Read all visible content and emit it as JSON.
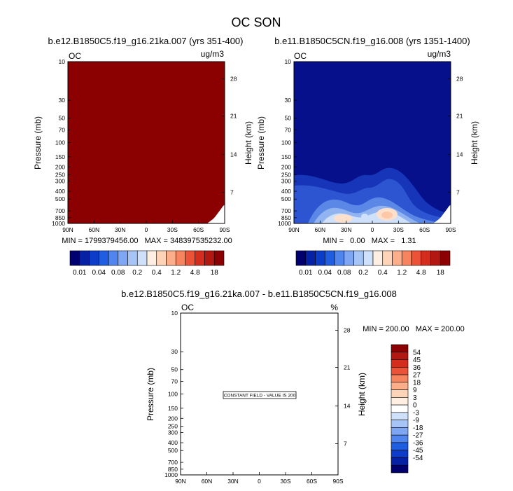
{
  "title": "OC SON",
  "colors": {
    "background": "#ffffff",
    "saturated": "#8b0000",
    "blue_field": "#05108a"
  },
  "palette": [
    "#02006e",
    "#0621a4",
    "#0c3cc8",
    "#1f5ee1",
    "#4f85ec",
    "#7ea6f2",
    "#a6c5f6",
    "#cfe0fb",
    "#ffefe2",
    "#fed4b9",
    "#fcae8a",
    "#f6845f",
    "#ec5237",
    "#d52d1d",
    "#b21711",
    "#8b0000"
  ],
  "chart_data": [
    {
      "type": "heatmap",
      "id": "panel1",
      "title": "b.e12.B1850C5.f19_g16.21ka.007 (yrs 351-400)",
      "corner_left": "OC",
      "corner_right": "ug/m3",
      "xlabel": "",
      "ylabel": "Pressure (mb)",
      "ylabel_right": "Height (km)",
      "x_ticks": [
        "90N",
        "60N",
        "30N",
        "0",
        "30S",
        "60S",
        "90S"
      ],
      "x_range": [
        90,
        -90
      ],
      "y_ticks": [
        "10",
        "30",
        "50",
        "70",
        "100",
        "150",
        "200",
        "250",
        "300",
        "400",
        "500",
        "700",
        "850",
        "1000"
      ],
      "y_range": [
        1000,
        10
      ],
      "y_scale": "log",
      "height_ticks": [
        "28",
        "21",
        "14",
        "7"
      ],
      "field_description": "saturated above top contour level everywhere except no-data terrain wedge near 90S",
      "stats": "MIN = 1799379456.00   MAX = 348397535232.00",
      "labelbar": [
        "0.01",
        "0.04",
        "0.08",
        "0.2",
        "0.4",
        "1.2",
        "4.8",
        "18"
      ]
    },
    {
      "type": "heatmap",
      "id": "panel2",
      "title": "b.e11.B1850C5CN.f19_g16.008 (yrs 1351-1400)",
      "corner_left": "OC",
      "corner_right": "ug/m3",
      "xlabel": "",
      "ylabel": "Pressure (mb)",
      "ylabel_right": "Height (km)",
      "x_ticks": [
        "90N",
        "60N",
        "30N",
        "0",
        "30S",
        "60S",
        "90S"
      ],
      "x_range": [
        90,
        -90
      ],
      "y_ticks": [
        "10",
        "30",
        "50",
        "70",
        "100",
        "150",
        "200",
        "250",
        "300",
        "400",
        "500",
        "700",
        "850",
        "1000"
      ],
      "y_range": [
        1000,
        10
      ],
      "y_scale": "log",
      "height_ticks": [
        "28",
        "21",
        "14",
        "7"
      ],
      "field_description": "low values aloft, higher values (up to 1.31) in lower troposphere peaking near 30N and 10S",
      "stats": "MIN =   0.00   MAX =   1.31",
      "labelbar": [
        "0.01",
        "0.04",
        "0.08",
        "0.2",
        "0.4",
        "1.2",
        "4.8",
        "18"
      ]
    },
    {
      "type": "heatmap",
      "id": "panel3",
      "title": "b.e12.B1850C5.f19_g16.21ka.007 - b.e11.B1850C5CN.f19_g16.008",
      "corner_left": "OC",
      "corner_right": "%",
      "xlabel": "",
      "ylabel": "Pressure (mb)",
      "ylabel_right": "Height (km)",
      "x_ticks": [
        "90N",
        "60N",
        "30N",
        "0",
        "30S",
        "60S",
        "90S"
      ],
      "x_range": [
        90,
        -90
      ],
      "y_ticks": [
        "10",
        "30",
        "50",
        "70",
        "100",
        "150",
        "200",
        "250",
        "300",
        "400",
        "500",
        "700",
        "850",
        "1000"
      ],
      "y_range": [
        1000,
        10
      ],
      "y_scale": "log",
      "height_ticks": [
        "28",
        "21",
        "14",
        "7"
      ],
      "annotation": "CONSTANT FIELD - VALUE IS 200",
      "stats": "MIN = 200.00   MAX = 200.00",
      "labelbar": [
        "54",
        "45",
        "36",
        "27",
        "18",
        "9",
        "3",
        "0",
        "-3",
        "-9",
        "-18",
        "-27",
        "-36",
        "-45",
        "-54"
      ]
    }
  ]
}
